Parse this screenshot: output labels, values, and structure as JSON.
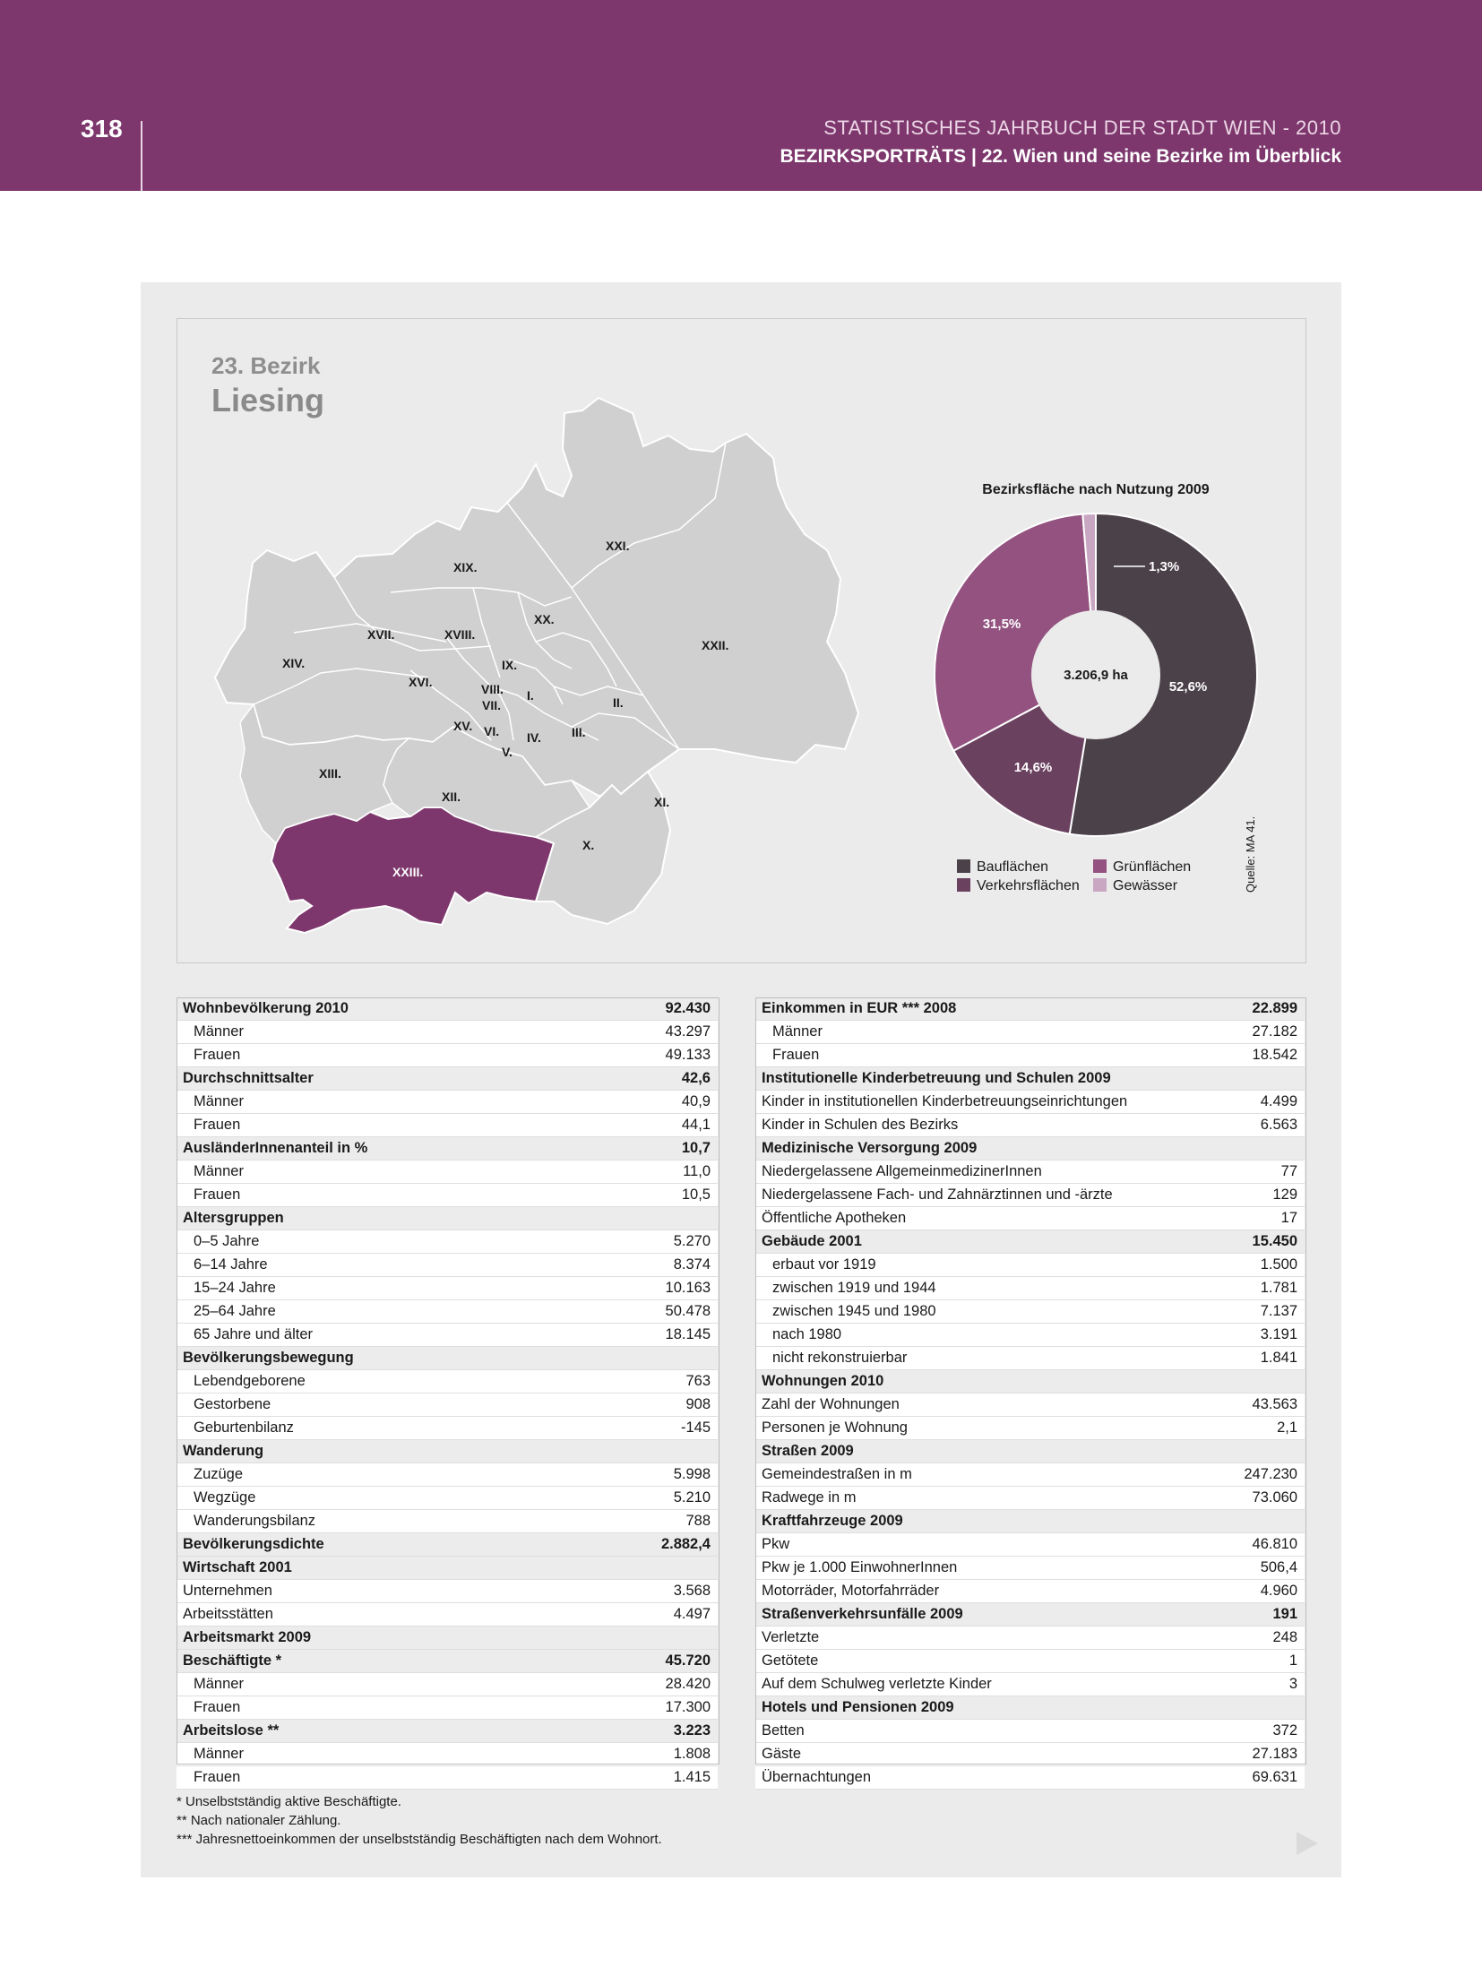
{
  "header": {
    "page_number": "318",
    "publication": "STATISTISCHES JAHRBUCH DER STADT WIEN - 2010",
    "section": "BEZIRKSPORTRÄTS | 22. Wien und seine Bezirke im Überblick"
  },
  "district": {
    "number": "23. Bezirk",
    "name": "Liesing"
  },
  "map": {
    "labels": [
      "XXI.",
      "XIX.",
      "XX.",
      "XVII.",
      "XVIII.",
      "XXII.",
      "XIV.",
      "IX.",
      "XVI.",
      "VIII.",
      "I.",
      "VII.",
      "II.",
      "XV.",
      "VI.",
      "IV.",
      "III.",
      "V.",
      "XIII.",
      "XII.",
      "XI.",
      "X.",
      "XXIII."
    ],
    "highlight_color": "#7d376d",
    "base_color": "#d0d0d0"
  },
  "pie": {
    "title": "Bezirksfläche nach Nutzung 2009",
    "center_label": "3.206,9 ha",
    "source": "Quelle: MA 41.",
    "legend": [
      "Bauflächen",
      "Grünflächen",
      "Verkehrsflächen",
      "Gewässer"
    ]
  },
  "chart_data": {
    "type": "pie",
    "title": "Bezirksfläche nach Nutzung 2009",
    "labels": [
      "Bauflächen",
      "Verkehrsflächen",
      "Grünflächen",
      "Gewässer"
    ],
    "values": [
      52.6,
      14.6,
      31.5,
      1.3
    ],
    "value_labels": [
      "52,6%",
      "14,6%",
      "31,5%",
      "1,3%"
    ],
    "colors": [
      "#4b4148",
      "#6b4160",
      "#93527f",
      "#c9a7c3"
    ],
    "center_label": "3.206,9 ha",
    "legend_position": "bottom"
  },
  "table_left": [
    {
      "label": "Wohnbevölkerung 2010",
      "value": "92.430",
      "header": true
    },
    {
      "label": "Männer",
      "value": "43.297"
    },
    {
      "label": "Frauen",
      "value": "49.133"
    },
    {
      "label": "Durchschnittsalter",
      "value": "42,6",
      "header": true
    },
    {
      "label": "Männer",
      "value": "40,9"
    },
    {
      "label": "Frauen",
      "value": "44,1"
    },
    {
      "label": "AusländerInnenanteil in %",
      "value": "10,7",
      "header": true
    },
    {
      "label": "Männer",
      "value": "11,0"
    },
    {
      "label": "Frauen",
      "value": "10,5"
    },
    {
      "label": "Altersgruppen",
      "value": "",
      "header": true
    },
    {
      "label": "0–5 Jahre",
      "value": "5.270"
    },
    {
      "label": "6–14 Jahre",
      "value": "8.374"
    },
    {
      "label": "15–24 Jahre",
      "value": "10.163"
    },
    {
      "label": "25–64 Jahre",
      "value": "50.478"
    },
    {
      "label": "65 Jahre und älter",
      "value": "18.145"
    },
    {
      "label": "Bevölkerungsbewegung",
      "value": "",
      "header": true
    },
    {
      "label": "Lebendgeborene",
      "value": "763"
    },
    {
      "label": "Gestorbene",
      "value": "908"
    },
    {
      "label": "Geburtenbilanz",
      "value": "-145"
    },
    {
      "label": "Wanderung",
      "value": "",
      "header": true
    },
    {
      "label": "Zuzüge",
      "value": "5.998"
    },
    {
      "label": "Wegzüge",
      "value": "5.210"
    },
    {
      "label": "Wanderungsbilanz",
      "value": "788"
    },
    {
      "label": "Bevölkerungsdichte",
      "value": "2.882,4",
      "header": true
    },
    {
      "label": "Wirtschaft 2001",
      "value": "",
      "header": true
    },
    {
      "label": "Unternehmen",
      "value": "3.568",
      "flush": true
    },
    {
      "label": "Arbeitsstätten",
      "value": "4.497",
      "flush": true
    },
    {
      "label": "Arbeitsmarkt 2009",
      "value": "",
      "header": true
    },
    {
      "label": "Beschäftigte *",
      "value": "45.720",
      "header": true
    },
    {
      "label": "Männer",
      "value": "28.420"
    },
    {
      "label": "Frauen",
      "value": "17.300"
    },
    {
      "label": "Arbeitslose **",
      "value": "3.223",
      "header": true
    },
    {
      "label": "Männer",
      "value": "1.808"
    },
    {
      "label": "Frauen",
      "value": "1.415"
    }
  ],
  "table_right": [
    {
      "label": "Einkommen in EUR *** 2008",
      "value": "22.899",
      "header": true
    },
    {
      "label": "Männer",
      "value": "27.182"
    },
    {
      "label": "Frauen",
      "value": "18.542"
    },
    {
      "label": "Institutionelle Kinderbetreuung und Schulen 2009",
      "value": "",
      "header": true
    },
    {
      "label": "Kinder in institutionellen Kinderbetreuungseinrichtungen",
      "value": "4.499",
      "flush": true
    },
    {
      "label": "Kinder in Schulen des Bezirks",
      "value": "6.563",
      "flush": true
    },
    {
      "label": "Medizinische Versorgung 2009",
      "value": "",
      "header": true
    },
    {
      "label": "Niedergelassene AllgemeinmedizinerInnen",
      "value": "77",
      "flush": true
    },
    {
      "label": "Niedergelassene Fach- und Zahnärztinnen und -ärzte",
      "value": "129",
      "flush": true
    },
    {
      "label": "Öffentliche Apotheken",
      "value": "17",
      "flush": true
    },
    {
      "label": "Gebäude 2001",
      "value": "15.450",
      "header": true
    },
    {
      "label": "erbaut vor 1919",
      "value": "1.500"
    },
    {
      "label": "zwischen 1919 und 1944",
      "value": "1.781"
    },
    {
      "label": "zwischen 1945 und 1980",
      "value": "7.137"
    },
    {
      "label": "nach 1980",
      "value": "3.191"
    },
    {
      "label": "nicht rekonstruierbar",
      "value": "1.841"
    },
    {
      "label": "Wohnungen 2010",
      "value": "",
      "header": true
    },
    {
      "label": "Zahl der Wohnungen",
      "value": "43.563",
      "flush": true
    },
    {
      "label": "Personen je Wohnung",
      "value": "2,1",
      "flush": true
    },
    {
      "label": "Straßen 2009",
      "value": "",
      "header": true
    },
    {
      "label": "Gemeindestraßen in m",
      "value": "247.230",
      "flush": true
    },
    {
      "label": "Radwege in m",
      "value": "73.060",
      "flush": true
    },
    {
      "label": "Kraftfahrzeuge 2009",
      "value": "",
      "header": true
    },
    {
      "label": "Pkw",
      "value": "46.810",
      "flush": true
    },
    {
      "label": "Pkw je 1.000 EinwohnerInnen",
      "value": "506,4",
      "flush": true
    },
    {
      "label": "Motorräder, Motorfahrräder",
      "value": "4.960",
      "flush": true
    },
    {
      "label": "Straßenverkehrsunfälle 2009",
      "value": "191",
      "header": true
    },
    {
      "label": "Verletzte",
      "value": "248",
      "flush": true
    },
    {
      "label": "Getötete",
      "value": "1",
      "flush": true
    },
    {
      "label": "Auf dem Schulweg verletzte Kinder",
      "value": "3",
      "flush": true
    },
    {
      "label": "Hotels und Pensionen 2009",
      "value": "",
      "header": true
    },
    {
      "label": "Betten",
      "value": "372",
      "flush": true
    },
    {
      "label": "Gäste",
      "value": "27.183",
      "flush": true
    },
    {
      "label": "Übernachtungen",
      "value": "69.631",
      "flush": true
    }
  ],
  "footnotes": [
    "* Unselbstständig aktive Beschäftigte.",
    "** Nach nationaler Zählung.",
    "*** Jahresnettoeinkommen der unselbstständig Beschäftigten nach dem Wohnort."
  ]
}
